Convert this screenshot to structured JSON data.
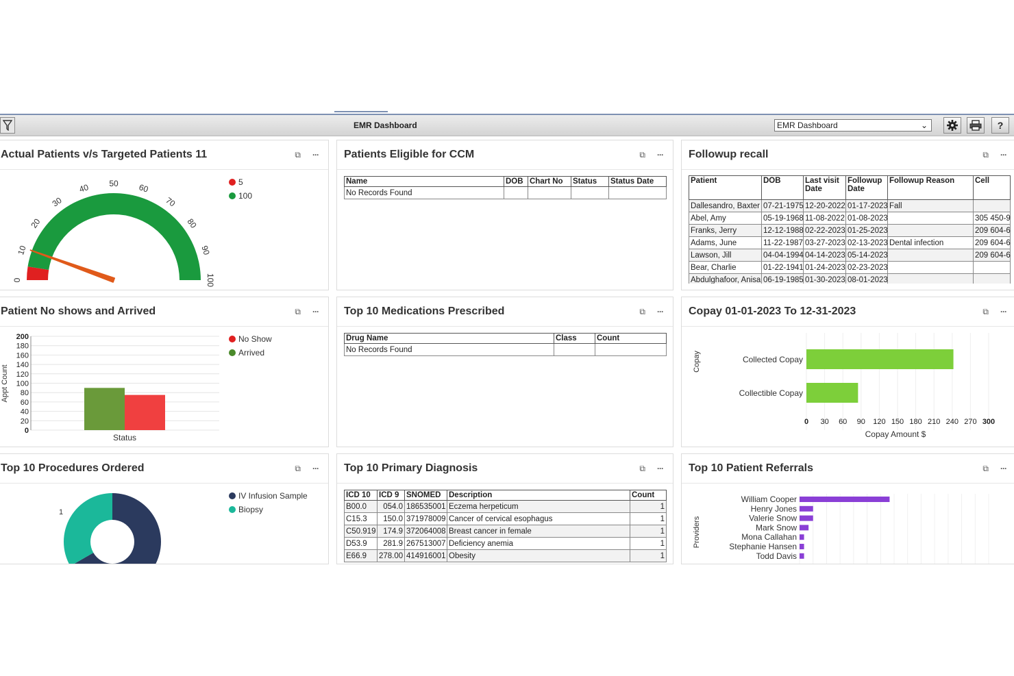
{
  "toolbar": {
    "title": "EMR Dashboard",
    "selected_dashboard": "EMR Dashboard",
    "help_label": "?"
  },
  "panels": {
    "actual_vs_target": {
      "title": "Actual Patients v/s Targeted Patients 11",
      "gauge_ticks": [
        "0",
        "10",
        "20",
        "30",
        "40",
        "50",
        "60",
        "70",
        "80",
        "90",
        "100"
      ],
      "legend": [
        {
          "label": "5",
          "color": "#e02020"
        },
        {
          "label": "100",
          "color": "#1a9a3e"
        }
      ],
      "needle_value": 11,
      "red_band_max": 5,
      "max": 100
    },
    "ccm": {
      "title": "Patients Eligible for CCM",
      "columns": [
        "Name",
        "DOB",
        "Chart No",
        "Status",
        "Status Date"
      ],
      "empty_text": "No Records Found"
    },
    "followup": {
      "title": "Followup recall",
      "columns": [
        "Patient",
        "DOB",
        "Last visit Date",
        "Followup Date",
        "Followup Reason",
        "Cell"
      ],
      "rows": [
        [
          "Dallesandro, Baxter",
          "07-21-1975",
          "12-20-2022",
          "01-17-2023",
          "Fall",
          ""
        ],
        [
          "Abel, Amy",
          "05-19-1968",
          "11-08-2022",
          "01-08-2023",
          "",
          "305 450-9"
        ],
        [
          "Franks, Jerry",
          "12-12-1988",
          "02-22-2023",
          "01-25-2023",
          "",
          "209 604-6"
        ],
        [
          "Adams, June",
          "11-22-1987",
          "03-27-2023",
          "02-13-2023",
          "Dental infection",
          "209 604-6"
        ],
        [
          "Lawson, Jill",
          "04-04-1994",
          "04-14-2023",
          "05-14-2023",
          "",
          "209 604-6"
        ],
        [
          "Bear, Charlie",
          "01-22-1941",
          "01-24-2023",
          "02-23-2023",
          "",
          ""
        ],
        [
          "Abdulghafoor, Anisa",
          "06-19-1985",
          "01-30-2023",
          "08-01-2023",
          "",
          ""
        ]
      ]
    },
    "noshows": {
      "title": "Patient No shows and Arrived",
      "chart_data": {
        "type": "bar",
        "categories": [
          "Status"
        ],
        "series": [
          {
            "name": "No Show",
            "values": [
              90
            ],
            "color": "#6a9a3a"
          },
          {
            "name": "Arrived",
            "values": [
              75
            ],
            "color": "#f04040"
          }
        ],
        "xlabel": "Status",
        "ylabel": "Appt Count",
        "ylim": [
          0,
          200
        ],
        "yticks": [
          "0",
          "20",
          "40",
          "60",
          "80",
          "100",
          "120",
          "140",
          "160",
          "180",
          "200"
        ],
        "legend_position": "top-right"
      }
    },
    "medications": {
      "title": "Top 10 Medications Prescribed",
      "columns": [
        "Drug Name",
        "Class",
        "Count"
      ],
      "empty_text": "No Records Found"
    },
    "copay": {
      "title": "Copay 01-01-2023 To 12-31-2023",
      "chart_data": {
        "type": "bar",
        "orientation": "horizontal",
        "categories": [
          "Collected Copay",
          "Collectible Copay"
        ],
        "values": [
          242,
          85
        ],
        "color": "#7dcf3a",
        "xlabel": "Copay Amount $",
        "ylabel": "Copay",
        "xlim": [
          0,
          300
        ],
        "xticks": [
          "0",
          "30",
          "60",
          "90",
          "120",
          "150",
          "180",
          "210",
          "240",
          "270",
          "300"
        ]
      }
    },
    "procedures": {
      "title": "Top 10 Procedures Ordered",
      "chart_data": {
        "type": "pie",
        "donut": true,
        "categories": [
          "IV Infusion Sample",
          "Biopsy"
        ],
        "values": [
          2,
          1
        ],
        "colors": [
          "#2b3a5e",
          "#1bb89a"
        ],
        "data_labels": [
          "1"
        ],
        "legend_position": "top-right"
      }
    },
    "diagnosis": {
      "title": "Top 10 Primary Diagnosis",
      "columns": [
        "ICD 10",
        "ICD 9",
        "SNOMED",
        "Description",
        "Count"
      ],
      "rows": [
        [
          "B00.0",
          "054.0",
          "186535001",
          "Eczema herpeticum",
          "1"
        ],
        [
          "C15.3",
          "150.0",
          "371978009",
          "Cancer of cervical esophagus",
          "1"
        ],
        [
          "C50.919",
          "174.9",
          "372064008",
          "Breast cancer in female",
          "1"
        ],
        [
          "D53.9",
          "281.9",
          "267513007",
          "Deficiency anemia",
          "1"
        ],
        [
          "E66.9",
          "278.00",
          "414916001",
          "Obesity",
          "1"
        ]
      ]
    },
    "referrals": {
      "title": "Top 10 Patient Referrals",
      "chart_data": {
        "type": "bar",
        "orientation": "horizontal",
        "categories": [
          "William Cooper",
          "Henry Jones",
          "Valerie Snow",
          "Mark Snow",
          "Mona Callahan",
          "Stephanie Hansen",
          "Todd Davis"
        ],
        "values": [
          20,
          3,
          3,
          2,
          1,
          1,
          1
        ],
        "color": "#8a3fd6",
        "ylabel": "Providers",
        "xlim": [
          0,
          42
        ]
      }
    }
  }
}
